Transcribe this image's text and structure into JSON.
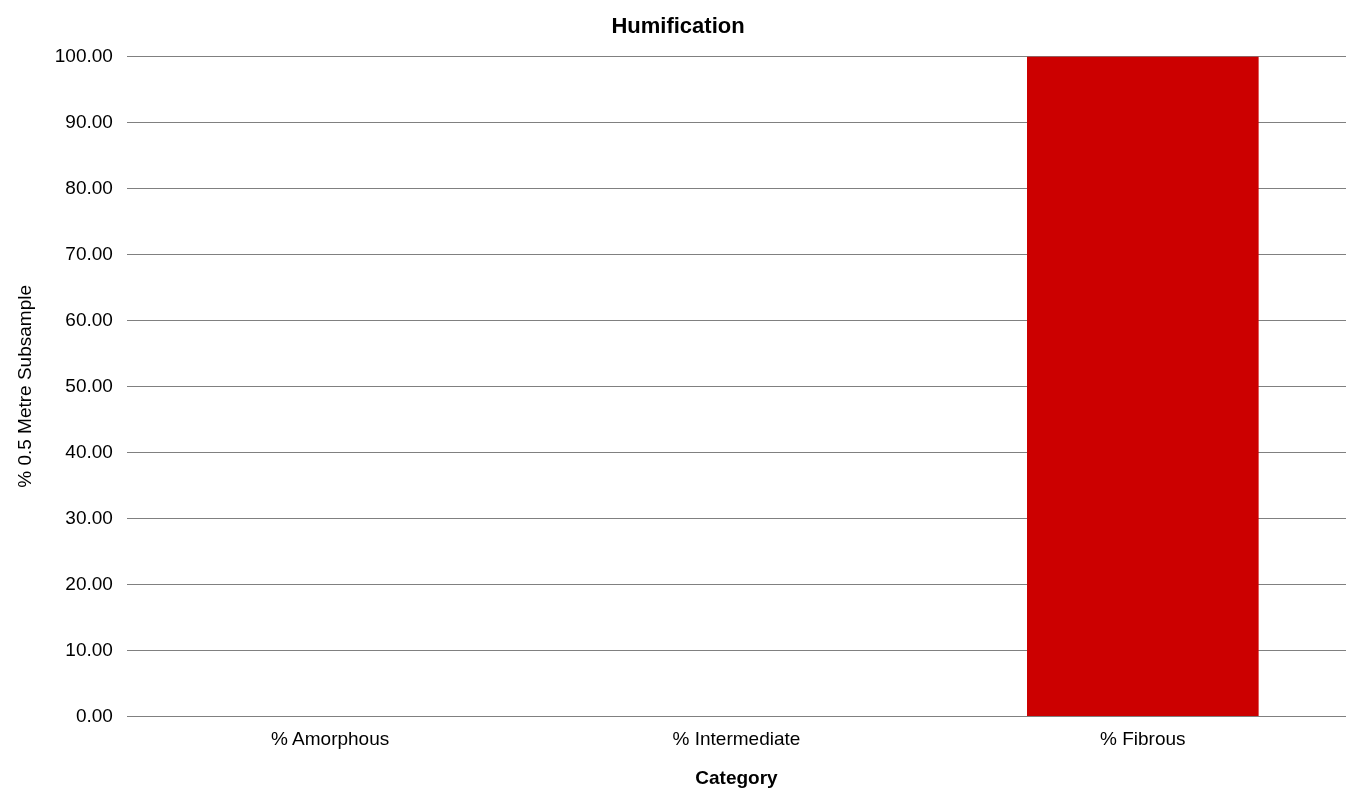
{
  "chart_data": {
    "type": "bar",
    "title": "Humification",
    "xlabel": "Category",
    "ylabel": "% 0.5 Metre Subsample",
    "categories": [
      "% Amorphous",
      "% Intermediate",
      "% Fibrous"
    ],
    "values": [
      0,
      0,
      100
    ],
    "color": "#cc0000",
    "ylim": [
      0,
      100
    ],
    "yticks": [
      {
        "value": 0,
        "label": "0.00"
      },
      {
        "value": 10,
        "label": "10.00"
      },
      {
        "value": 20,
        "label": "20.00"
      },
      {
        "value": 30,
        "label": "30.00"
      },
      {
        "value": 40,
        "label": "40.00"
      },
      {
        "value": 50,
        "label": "50.00"
      },
      {
        "value": 60,
        "label": "60.00"
      },
      {
        "value": 70,
        "label": "70.00"
      },
      {
        "value": 80,
        "label": "80.00"
      },
      {
        "value": 90,
        "label": "90.00"
      },
      {
        "value": 100,
        "label": "100.00"
      }
    ],
    "grid": "y",
    "legend": false
  }
}
